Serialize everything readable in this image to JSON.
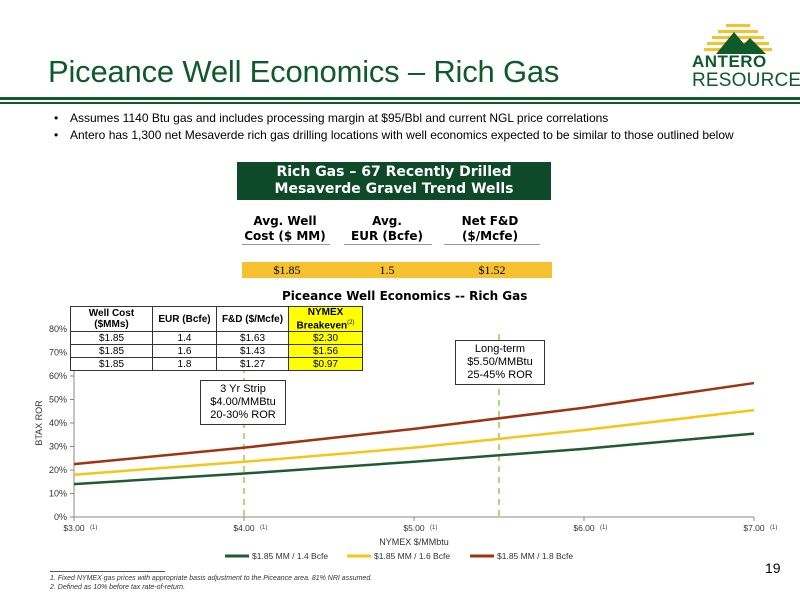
{
  "title": "Piceance Well Economics – Rich Gas",
  "logo": {
    "line1": "ANTERO",
    "line2": "RESOURCES"
  },
  "bullets": [
    "Assumes 1140 Btu gas and includes processing margin at $95/Bbl and current NGL price correlations",
    "Antero has 1,300 net Mesaverde rich gas drilling locations with well economics expected to be similar to those outlined below"
  ],
  "summary": {
    "header_line1": "Rich Gas – 67 Recently Drilled",
    "header_line2": "Mesaverde Gravel Trend Wells",
    "columns": [
      {
        "line1": "Avg. Well",
        "line2": "Cost ($ MM)",
        "value": "$1.85"
      },
      {
        "line1": "Avg.",
        "line2": "EUR (Bcfe)",
        "value": "1.5"
      },
      {
        "line1": "Net F&D",
        "line2": "($/Mcfe)",
        "value": "$1.52"
      }
    ]
  },
  "mini_table": {
    "headers": [
      "Well Cost ($MMs)",
      "EUR (Bcfe)",
      "F&D ($/Mcfe)",
      "NYMEX Breakeven"
    ],
    "header_sup": "(2)",
    "rows": [
      [
        "$1.85",
        "1.4",
        "$1.63",
        "$2.30"
      ],
      [
        "$1.85",
        "1.6",
        "$1.43",
        "$1.56"
      ],
      [
        "$1.85",
        "1.8",
        "$1.27",
        "$0.97"
      ]
    ]
  },
  "callouts": {
    "strip": {
      "line1": "3 Yr Strip",
      "line2": "$4.00/MMBtu",
      "line3": "20-30% ROR"
    },
    "longterm": {
      "line1": "Long-term",
      "line2": "$5.50/MMBtu",
      "line3": "25-45% ROR"
    }
  },
  "chart_data": {
    "type": "line",
    "title": "Piceance Well Economics -- Rich Gas",
    "xlabel": "NYMEX $/MMbtu",
    "ylabel": "BTAX ROR",
    "x": [
      3.0,
      4.0,
      5.0,
      6.0,
      7.0
    ],
    "xticks": [
      "$3.00",
      "$4.00",
      "$5.00",
      "$6.00",
      "$7.00"
    ],
    "xtick_sup": "(1)",
    "xlim": [
      3.0,
      7.0
    ],
    "ylim": [
      0,
      80
    ],
    "yticks": [
      "0%",
      "10%",
      "20%",
      "30%",
      "40%",
      "50%",
      "60%",
      "70%",
      "80%"
    ],
    "grid": false,
    "legend": "bottom",
    "vlines": [
      4.0,
      5.5
    ],
    "series": [
      {
        "name": "$1.85 MM / 1.4 Bcfe",
        "color": "#1f5a33",
        "values": [
          14,
          18.5,
          23.5,
          29,
          35.5
        ]
      },
      {
        "name": "$1.85 MM / 1.6 Bcfe",
        "color": "#f5c518",
        "values": [
          18,
          23.5,
          29.5,
          37,
          45.5
        ]
      },
      {
        "name": "$1.85 MM / 1.8 Bcfe",
        "color": "#a0330f",
        "values": [
          22.5,
          29.5,
          37.5,
          46.5,
          57
        ]
      }
    ]
  },
  "footnotes": [
    "1.   Fixed NYMEX gas prices with appropriate basis adjustment to the Piceance area. 81% NRI assumed.",
    "2.   Defined as 10% before tax rate-of-return."
  ],
  "page_number": "19",
  "colors": {
    "brand_green": "#0e5a2a",
    "highlight_yellow": "#f6c12f"
  }
}
